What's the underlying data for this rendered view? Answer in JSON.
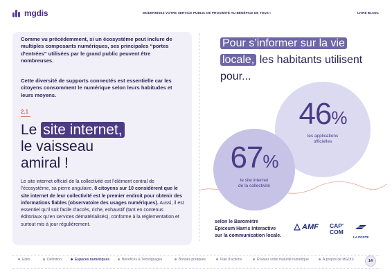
{
  "header": {
    "logo": "mgdis",
    "title": "MODERNISEZ VOTRE SERVICE PUBLIC DE PROXIMITÉ AU BÉNÉFICE DE TOUS !",
    "right": "LIVRE BLANC"
  },
  "left": {
    "intro_1": "Comme vu précédemment, si un écosystème peut inclure de multiples composants numériques, ses principales “portes d’entrées” utilisées par le grand public peuvent être nombreuses.",
    "intro_2": "Cette diversité de supports connectés est essentielle car les citoyens consomment le numérique selon leurs habitudes et leurs moyens.",
    "section_number": "2.1",
    "heading": {
      "line1_pre": "Le ",
      "line1_highlight": "site internet,",
      "line2": "le vaisseau",
      "line3": "amiral !"
    },
    "body": {
      "part1": "Le site internet officiel de la collectivité est l’élément central de l’écosystème, sa pierre angulaire. ",
      "part2_bold": "8 citoyens sur 10 considèrent que le site internet de leur collectivité est le premier endroit pour obtenir des informations fiables (observatoire des usages numériques).",
      "part3": " Aussi, il est essentiel qu’il soit facile d’accès, riche, exhaustif (tant en contenus éditoriaux qu’en services dématérialisés), conforme à la réglementation et surtout mis à jour régulièrement."
    }
  },
  "right": {
    "heading": {
      "line1_highlight": "Pour s’informer sur la vie",
      "line2_highlight": "locale,",
      "line2_rest": " les habitants utilisent",
      "line3": "pour..."
    },
    "stat_46": {
      "value": "46",
      "unit": "%",
      "label_1": "les applications",
      "label_2": "officielles"
    },
    "stat_67": {
      "value": "67",
      "unit": "%",
      "label_1": "le site internet",
      "label_2": "de la collectivité"
    },
    "source": {
      "line1": "selon le Baromètre",
      "line2": "Epiceum Harris Interactive",
      "line3": "sur la communication locale."
    },
    "logos": {
      "amf": "AMF",
      "capcom_1": "CAP'",
      "capcom_2": "COM",
      "laposte": "LA POSTE"
    }
  },
  "nav": {
    "items": [
      "Edito",
      "Définition",
      "Espaces numériques",
      "Bénéfices & Témoignages",
      "Bonnes pratiques",
      "Plan d’actions",
      "Évaluez votre maturité numérique",
      "À propos de MGDIS"
    ],
    "active_index": 2,
    "page": "14"
  },
  "colors": {
    "navy": "#2a2355",
    "purple_dark": "#4b3b86",
    "purple_light": "#6e66a7",
    "accent_red": "#e06a5a",
    "card_bg": "#f1f0f8"
  }
}
